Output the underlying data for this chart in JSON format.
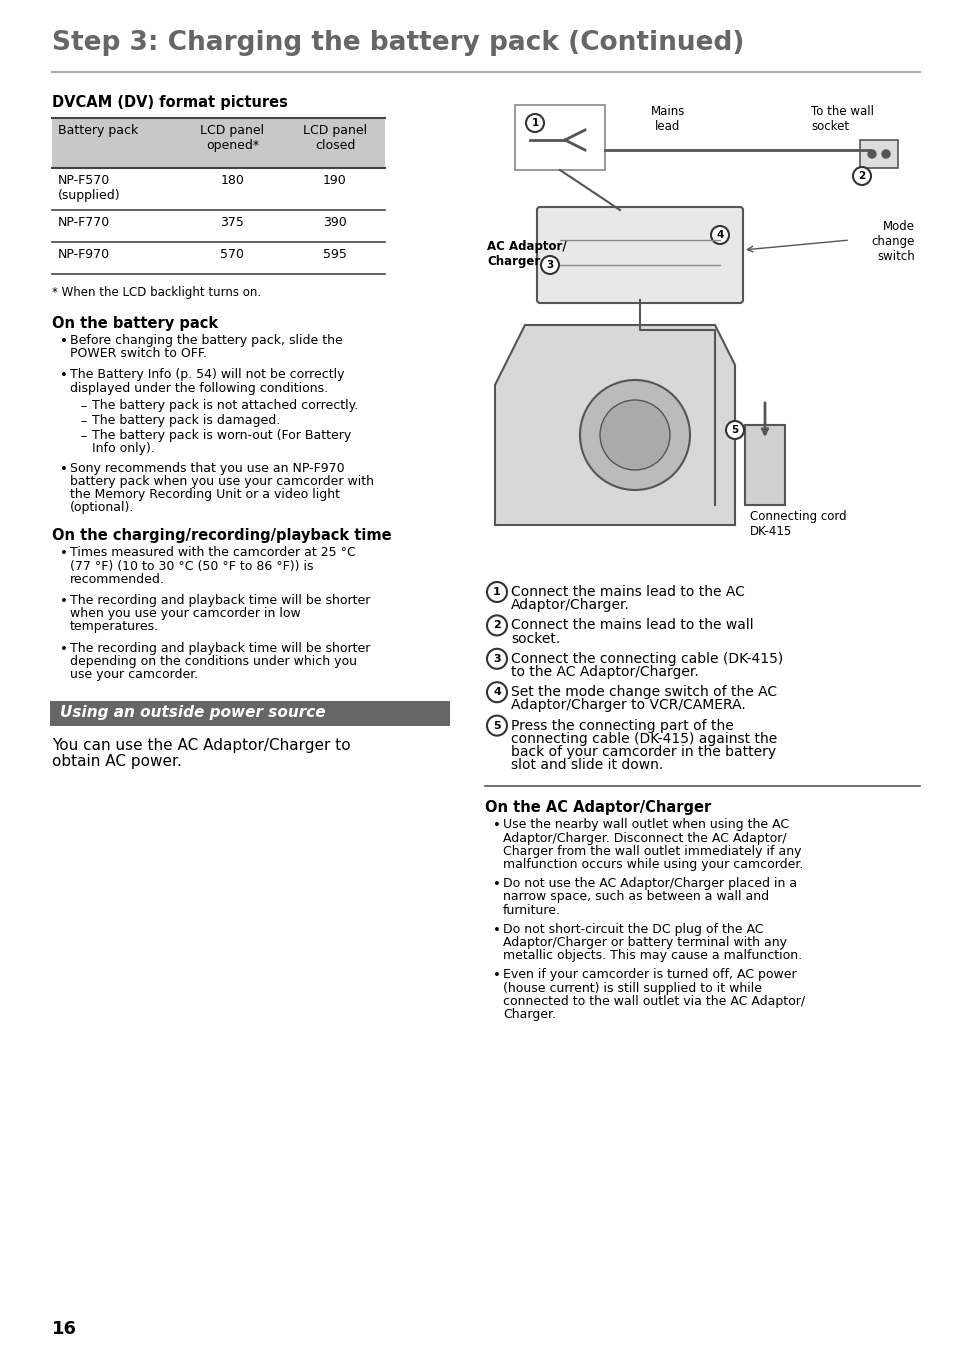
{
  "title": "Step 3: Charging the battery pack (Continued)",
  "title_color": "#666666",
  "bg_color": "#ffffff",
  "table_title": "DVCAM (DV) format pictures",
  "table_header": [
    "Battery pack",
    "LCD panel\nopened*",
    "LCD panel\nclosed"
  ],
  "table_rows": [
    [
      "NP-F570\n(supplied)",
      "180",
      "190"
    ],
    [
      "NP-F770",
      "375",
      "390"
    ],
    [
      "NP-F970",
      "570",
      "595"
    ]
  ],
  "table_header_bg": "#cccccc",
  "footnote": "* When the LCD backlight turns on.",
  "section1_title": "On the battery pack",
  "section2_title": "On the charging/recording/playback time",
  "banner_text": "Using an outside power source",
  "banner_bg": "#666666",
  "banner_fg": "#ffffff",
  "intro_text": "You can use the AC Adaptor/Charger to\nobtain AC power.",
  "right_section_title": "On the AC Adaptor/Charger",
  "right_bullets": [
    "Use the nearby wall outlet when using the AC\nAdaptor/Charger. Disconnect the AC Adaptor/\nCharger from the wall outlet immediately if any\nmalfunction occurs while using your camcorder.",
    "Do not use the AC Adaptor/Charger placed in a\nnarrow space, such as between a wall and\nfurniture.",
    "Do not short-circuit the DC plug of the AC\nAdaptor/Charger or battery terminal with any\nmetallic objects. This may cause a malfunction.",
    "Even if your camcorder is turned off, AC power\n(house current) is still supplied to it while\nconnected to the wall outlet via the AC Adaptor/\nCharger."
  ],
  "numbered_steps": [
    "Connect the mains lead to the AC\nAdaptor/Charger.",
    "Connect the mains lead to the wall\nsocket.",
    "Connect the connecting cable (DK-415)\nto the AC Adaptor/Charger.",
    "Set the mode change switch of the AC\nAdaptor/Charger to VCR/CAMERA.",
    "Press the connecting part of the\nconnecting cable (DK-415) against the\nback of your camcorder in the battery\nslot and slide it down."
  ],
  "page_number": "16"
}
